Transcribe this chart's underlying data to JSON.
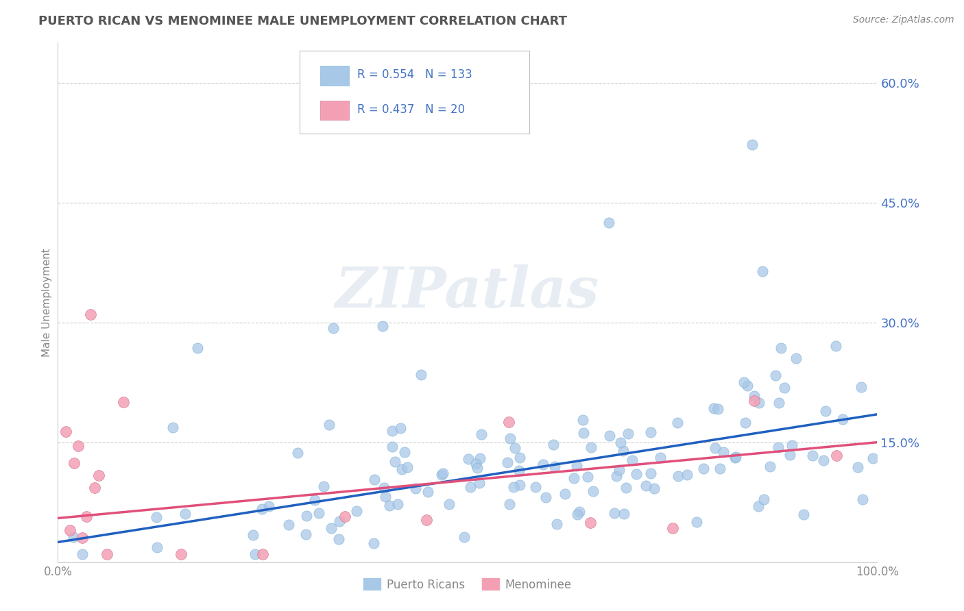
{
  "title": "PUERTO RICAN VS MENOMINEE MALE UNEMPLOYMENT CORRELATION CHART",
  "source_text": "Source: ZipAtlas.com",
  "ylabel": "Male Unemployment",
  "x_min": 0.0,
  "x_max": 1.0,
  "y_min": 0.0,
  "y_max": 0.65,
  "y_ticks": [
    0.15,
    0.3,
    0.45,
    0.6
  ],
  "x_ticks": [
    0.0,
    1.0
  ],
  "x_tick_labels": [
    "0.0%",
    "100.0%"
  ],
  "y_tick_labels": [
    "15.0%",
    "30.0%",
    "45.0%",
    "60.0%"
  ],
  "series1_name": "Puerto Ricans",
  "series1_color": "#a8c8e8",
  "series1_line_color": "#2060c0",
  "series1_R": 0.554,
  "series1_N": 133,
  "series2_name": "Menominee",
  "series2_color": "#f4a0b4",
  "series2_line_color": "#e0507a",
  "series2_R": 0.437,
  "series2_N": 20,
  "legend_color": "#4472c4",
  "background_color": "#ffffff",
  "grid_color": "#c8c8c8",
  "watermark_text": "ZIPatlas",
  "title_color": "#555555",
  "title_fontsize": 13,
  "axis_label_color": "#888888",
  "right_tick_color": "#4472c4",
  "pr_trend": [
    0.025,
    0.185
  ],
  "men_trend": [
    0.055,
    0.15
  ]
}
